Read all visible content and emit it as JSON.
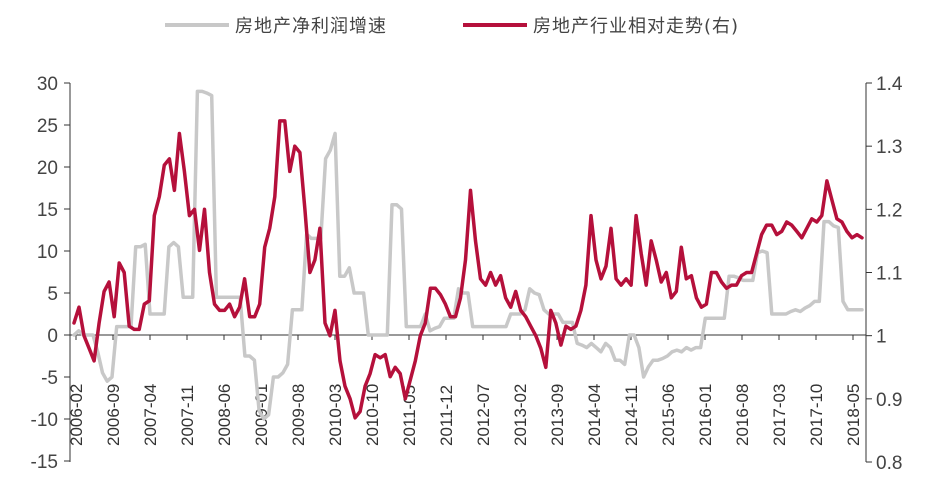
{
  "legend": {
    "series1_label": "房地产净利润增速",
    "series2_label": "房地产行业相对走势(右)"
  },
  "colors": {
    "series1": "#c8c8c8",
    "series2": "#b5103b",
    "axis": "#333333"
  },
  "chart_data": {
    "type": "line",
    "legend_position": "top",
    "grid": false,
    "y_left": {
      "min": -15,
      "max": 30,
      "ticks": [
        30,
        25,
        20,
        15,
        10,
        5,
        0,
        -5,
        -10,
        -15
      ]
    },
    "y_right": {
      "min": 0.8,
      "max": 1.4,
      "ticks": [
        "1.4",
        "1.3",
        "1.2",
        "1.1",
        "1",
        "0.9",
        "0.8"
      ]
    },
    "x_ticks": [
      "2006-02",
      "2006-09",
      "2007-04",
      "2007-11",
      "2008-06",
      "2009-01",
      "2009-08",
      "2010-03",
      "2010-10",
      "2011-05",
      "2011-12",
      "2012-07",
      "2013-02",
      "2013-09",
      "2014-04",
      "2014-11",
      "2015-06",
      "2016-01",
      "2016-08",
      "2017-03",
      "2017-10",
      "2018-05"
    ],
    "series": [
      {
        "name": "房地产净利润增速",
        "axis": "left",
        "values": [
          0,
          0.5,
          0,
          0,
          0,
          -2,
          -4.5,
          -5.5,
          -5,
          1,
          1,
          1,
          1,
          10.5,
          10.5,
          10.8,
          2.5,
          2.5,
          2.5,
          2.5,
          10.5,
          11,
          10.5,
          4.5,
          4.5,
          4.5,
          29,
          29,
          28.8,
          28.5,
          4.5,
          4.5,
          4.5,
          4.5,
          4.5,
          4.5,
          -2.5,
          -2.5,
          -3,
          -9,
          -10,
          -9.5,
          -5,
          -5,
          -4.5,
          -3.5,
          3,
          3,
          3,
          12,
          11.5,
          11.5,
          11.5,
          21,
          22,
          24,
          7,
          7,
          8,
          5,
          5,
          5,
          0,
          0,
          0,
          0,
          0,
          15.5,
          15.5,
          15,
          1,
          1,
          1,
          1,
          2.5,
          0.5,
          0.8,
          1,
          2,
          2,
          2,
          5.5,
          5,
          5,
          1,
          1,
          1,
          1,
          1,
          1,
          1,
          1,
          2.5,
          2.5,
          2.5,
          3,
          5.5,
          5,
          4.8,
          3,
          2.5,
          2.5,
          2.5,
          1.5,
          1.5,
          1.5,
          -1,
          -1.2,
          -1.5,
          -1,
          -1.5,
          -2,
          -1,
          -1.5,
          -3,
          -3,
          -3.5,
          0,
          0,
          -1.5,
          -5,
          -3.8,
          -3,
          -3,
          -2.8,
          -2.5,
          -2,
          -1.8,
          -2,
          -1.5,
          -1.8,
          -1.5,
          -1.5,
          2,
          2,
          2,
          2,
          2,
          7,
          7,
          6.8,
          6.5,
          6.5,
          6.5,
          9.8,
          10,
          9.8,
          2.5,
          2.5,
          2.5,
          2.5,
          2.8,
          3,
          2.8,
          3.2,
          3.5,
          4,
          4,
          13.5,
          13.5,
          13,
          12.8,
          4,
          3,
          3,
          3,
          3
        ]
      },
      {
        "name": "房地产行业相对走势(右)",
        "axis": "right",
        "values": [
          1.02,
          1.045,
          1.0,
          0.98,
          0.96,
          1.02,
          1.07,
          1.085,
          1.03,
          1.115,
          1.1,
          1.015,
          1.01,
          1.01,
          1.05,
          1.055,
          1.19,
          1.22,
          1.27,
          1.28,
          1.23,
          1.32,
          1.26,
          1.19,
          1.2,
          1.135,
          1.2,
          1.1,
          1.05,
          1.04,
          1.04,
          1.05,
          1.03,
          1.045,
          1.09,
          1.03,
          1.03,
          1.05,
          1.14,
          1.17,
          1.22,
          1.34,
          1.34,
          1.26,
          1.3,
          1.29,
          1.2,
          1.1,
          1.12,
          1.17,
          1.02,
          1.0,
          1.04,
          0.96,
          0.92,
          0.9,
          0.87,
          0.88,
          0.92,
          0.94,
          0.97,
          0.965,
          0.97,
          0.935,
          0.95,
          0.94,
          0.9,
          0.93,
          0.96,
          1.0,
          1.02,
          1.075,
          1.075,
          1.065,
          1.05,
          1.03,
          1.03,
          1.06,
          1.12,
          1.23,
          1.15,
          1.09,
          1.08,
          1.1,
          1.08,
          1.095,
          1.06,
          1.045,
          1.07,
          1.04,
          1.03,
          1.015,
          1.0,
          0.98,
          0.95,
          1.04,
          1.02,
          0.985,
          1.015,
          1.01,
          1.015,
          1.04,
          1.08,
          1.19,
          1.12,
          1.09,
          1.11,
          1.17,
          1.09,
          1.08,
          1.09,
          1.08,
          1.19,
          1.13,
          1.08,
          1.15,
          1.12,
          1.085,
          1.1,
          1.06,
          1.07,
          1.14,
          1.09,
          1.095,
          1.06,
          1.045,
          1.05,
          1.1,
          1.1,
          1.085,
          1.075,
          1.08,
          1.08,
          1.095,
          1.1,
          1.1,
          1.13,
          1.16,
          1.175,
          1.175,
          1.16,
          1.165,
          1.18,
          1.175,
          1.165,
          1.155,
          1.17,
          1.185,
          1.18,
          1.19,
          1.245,
          1.215,
          1.185,
          1.18,
          1.165,
          1.155,
          1.16,
          1.155
        ]
      }
    ]
  }
}
